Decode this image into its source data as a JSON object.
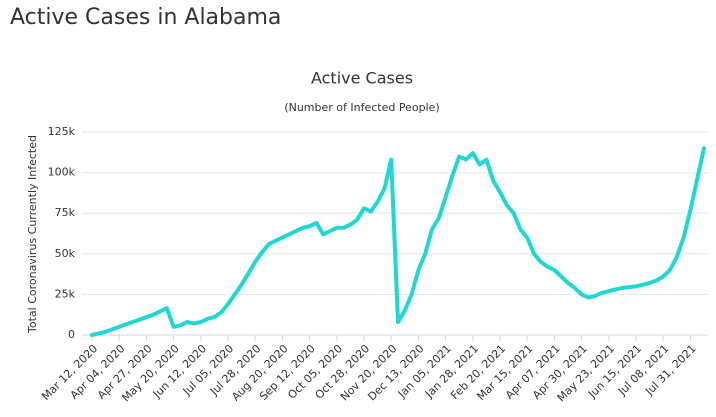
{
  "page_title": "Active Cases in Alabama",
  "chart_data": {
    "type": "line",
    "title": "Active Cases",
    "subtitle": "(Number of Infected People)",
    "y_label": "Total Coronavirus Currently Infected",
    "categories": [
      "Mar 12, 2020",
      null,
      null,
      null,
      "Apr 04, 2020",
      null,
      null,
      null,
      "Apr 27, 2020",
      null,
      null,
      null,
      "May 20, 2020",
      null,
      null,
      null,
      "Jun 12, 2020",
      null,
      null,
      null,
      "Jul 05, 2020",
      null,
      null,
      null,
      "Jul 28, 2020",
      null,
      null,
      null,
      "Aug 20, 2020",
      null,
      null,
      null,
      "Sep 12, 2020",
      null,
      null,
      null,
      "Oct 05, 2020",
      null,
      null,
      null,
      "Oct 28, 2020",
      null,
      null,
      null,
      "Nov 20, 2020",
      null,
      null,
      null,
      "Dec 13, 2020",
      null,
      null,
      null,
      "Jan 05, 2021",
      null,
      null,
      null,
      "Jan 28, 2021",
      null,
      null,
      null,
      "Feb 20, 2021",
      null,
      null,
      null,
      "Mar 15, 2021",
      null,
      null,
      null,
      "Apr 07, 2021",
      null,
      null,
      null,
      "Apr 30, 2021",
      null,
      null,
      null,
      "May 23, 2021",
      null,
      null,
      null,
      "Jun 15, 2021",
      null,
      null,
      null,
      "Jul 08, 2021",
      null,
      null,
      null,
      "Jul 31, 2021",
      null,
      null
    ],
    "series": [
      {
        "name": "Active Cases",
        "color": "#1fd8d4",
        "values": [
          0,
          1000,
          2000,
          3500,
          5000,
          6500,
          8000,
          9500,
          11000,
          12500,
          14500,
          16500,
          5000,
          6000,
          8000,
          7000,
          8000,
          10000,
          11000,
          14000,
          19000,
          25000,
          31000,
          38000,
          45000,
          51000,
          56000,
          58000,
          60000,
          62000,
          64000,
          66000,
          67000,
          69000,
          62000,
          64000,
          66000,
          66000,
          68000,
          71000,
          78000,
          76000,
          82000,
          90000,
          108000,
          8000,
          15000,
          25000,
          40000,
          50000,
          65000,
          72000,
          85000,
          98000,
          110000,
          108000,
          112000,
          105000,
          108000,
          95000,
          88000,
          80000,
          75000,
          65000,
          60000,
          50000,
          45000,
          42000,
          40000,
          36000,
          32000,
          29000,
          25000,
          23000,
          24000,
          26000,
          27000,
          28000,
          29000,
          29500,
          30000,
          31000,
          32000,
          33500,
          36000,
          40000,
          48000,
          60000,
          77000,
          96000,
          115000
        ]
      }
    ],
    "ylim": [
      0,
      125000
    ],
    "yticks": [
      0,
      {
        "value": 25000,
        "label": "25k"
      },
      {
        "value": 50000,
        "label": "50k"
      },
      {
        "value": 75000,
        "label": "75k"
      },
      {
        "value": 100000,
        "label": "100k"
      },
      {
        "value": 125000,
        "label": "125k"
      }
    ],
    "grid": true
  }
}
